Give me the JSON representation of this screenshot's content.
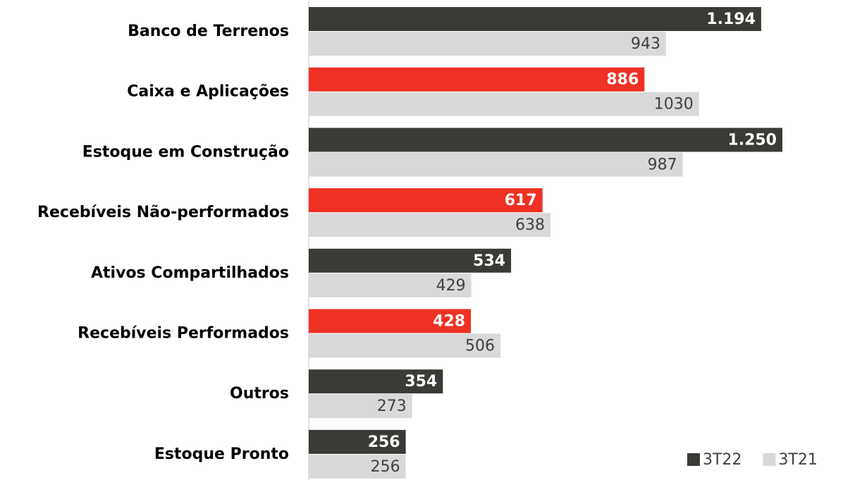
{
  "chart_data": {
    "type": "hbar",
    "categories": [
      "Banco de Terrenos",
      "Caixa e Aplicações",
      "Estoque em Construção",
      "Recebíveis Não-performados",
      "Ativos Compartilhados",
      "Recebíveis Performados",
      "Outros",
      "Estoque Pronto"
    ],
    "series": [
      {
        "name": "3T22",
        "color": "#3b3a36",
        "colors": [
          "#3b3a36",
          "#ee3124",
          "#3b3a36",
          "#ee3124",
          "#3b3a36",
          "#ee3124",
          "#3b3a36",
          "#3b3a36"
        ],
        "values": [
          1194,
          886,
          1250,
          617,
          534,
          428,
          354,
          256
        ],
        "value_labels": [
          "1.194",
          "886",
          "1.250",
          "617",
          "534",
          "428",
          "354",
          "256"
        ]
      },
      {
        "name": "3T21",
        "color": "#d9d9d9",
        "values": [
          943,
          1030,
          987,
          638,
          429,
          506,
          273,
          256
        ]
      }
    ],
    "xlim": [
      0,
      1250
    ],
    "legend": "bottom-right"
  }
}
